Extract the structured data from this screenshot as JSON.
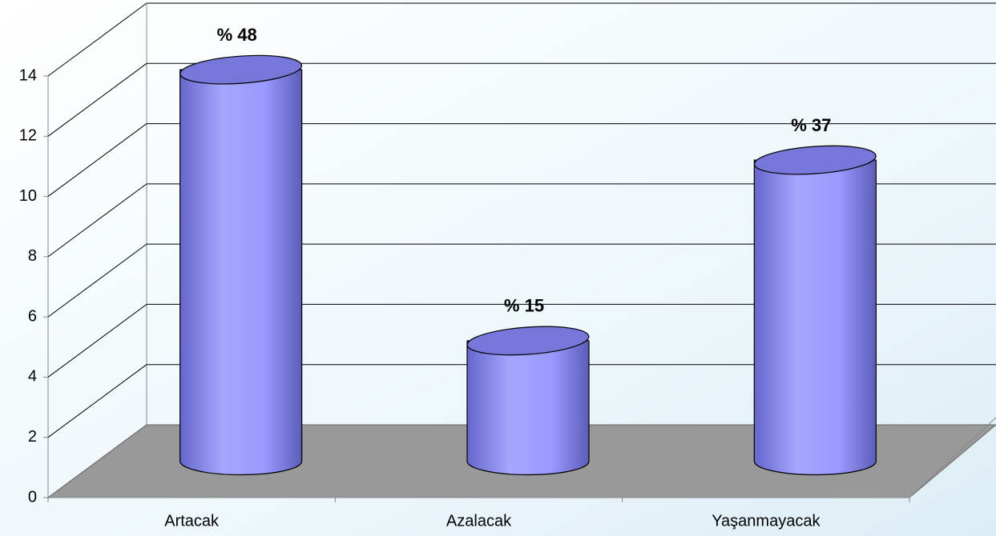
{
  "chart_data": {
    "type": "bar3d",
    "categories": [
      "Artacak",
      "Azalacak",
      "Yaşanmayacak"
    ],
    "values": [
      13,
      4,
      10
    ],
    "annotations": [
      "% 48",
      "% 15",
      "% 37"
    ],
    "color": "#9999ff",
    "ylim": [
      0,
      14
    ],
    "yticks": [
      0,
      2,
      4,
      6,
      8,
      10,
      12,
      14
    ],
    "grid": true
  }
}
